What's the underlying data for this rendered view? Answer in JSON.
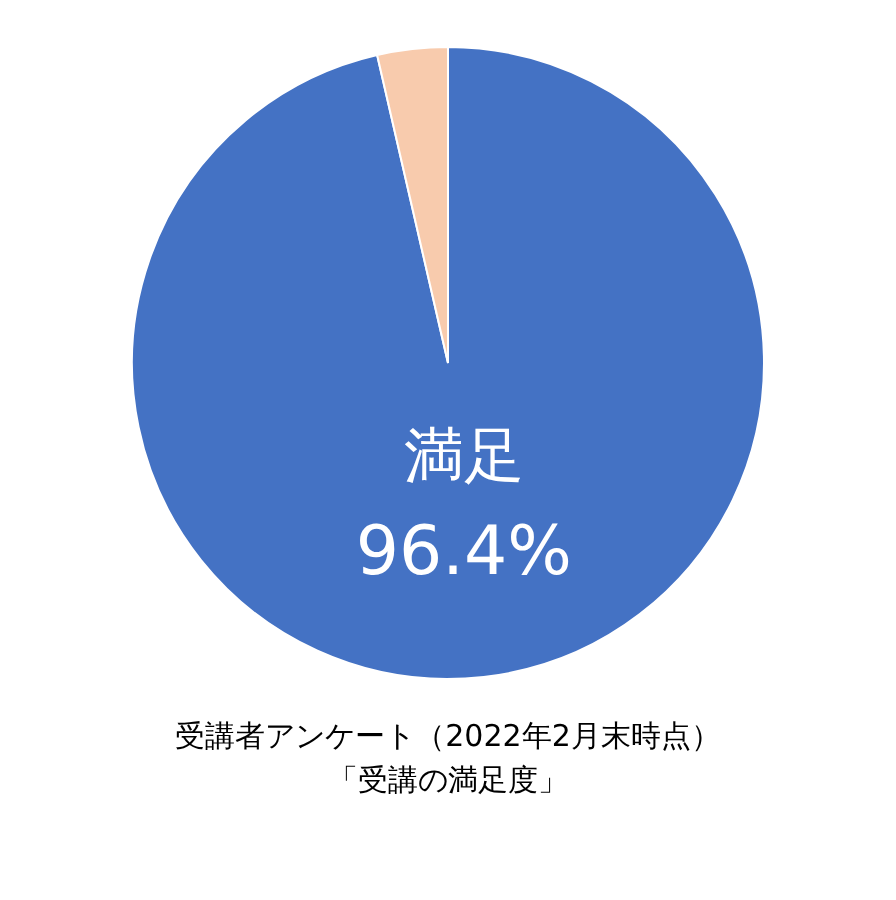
{
  "chart_data": {
    "type": "pie",
    "categories": [
      "満足",
      null
    ],
    "values": [
      96.4,
      3.6
    ],
    "colors": [
      "#4472c4",
      "#f8cbad"
    ],
    "value_labels": [
      "96.4%",
      null
    ],
    "annotations": [
      "受講者アンケート（2022年2月末時点）",
      "「受講の満足度」"
    ],
    "legend": false
  }
}
